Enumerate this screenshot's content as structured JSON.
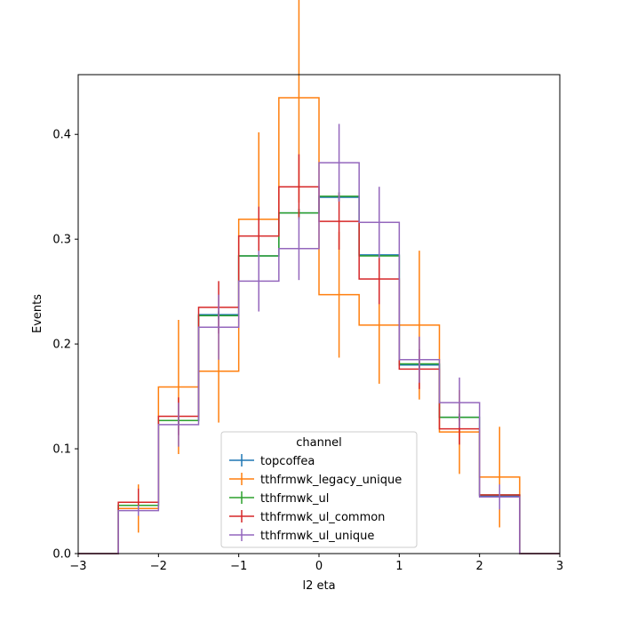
{
  "chart_data": {
    "type": "step",
    "xlabel": "l2 eta",
    "ylabel": "Events",
    "xlim": [
      -3,
      3
    ],
    "ylim": [
      0,
      0.457
    ],
    "xticks": [
      -3,
      -2,
      -1,
      0,
      1,
      2,
      3
    ],
    "yticks": [
      0.0,
      0.1,
      0.2,
      0.3,
      0.4
    ],
    "xtick_labels": [
      "−3",
      "−2",
      "−1",
      "0",
      "1",
      "2",
      "3"
    ],
    "ytick_labels": [
      "0.0",
      "0.1",
      "0.2",
      "0.3",
      "0.4"
    ],
    "bin_edges": [
      -3,
      -2.5,
      -2,
      -1.5,
      -1,
      -0.5,
      0,
      0.5,
      1,
      1.5,
      2,
      2.5,
      3
    ],
    "legend": {
      "title": "channel",
      "placement": "lower center"
    },
    "series": [
      {
        "name": "topcoffea",
        "color": "#1f77b4",
        "values": [
          0,
          0.046,
          0.127,
          0.228,
          0.284,
          0.325,
          0.34,
          0.285,
          0.18,
          0.13,
          0.055,
          0
        ],
        "errors": [
          0,
          0.003,
          0.004,
          0.004,
          0.004,
          0.004,
          0.004,
          0.004,
          0.004,
          0.003,
          0.002,
          0
        ]
      },
      {
        "name": "tthfrmwk_legacy_unique",
        "color": "#ff7f0e",
        "values": [
          0,
          0.043,
          0.159,
          0.174,
          0.319,
          0.435,
          0.247,
          0.218,
          0.218,
          0.116,
          0.073,
          0
        ],
        "errors": [
          0,
          0.023,
          0.064,
          0.049,
          0.083,
          0.1,
          0.06,
          0.056,
          0.071,
          0.04,
          0.048,
          0
        ]
      },
      {
        "name": "tthfrmwk_ul",
        "color": "#2ca02c",
        "values": [
          0,
          0.046,
          0.127,
          0.227,
          0.284,
          0.325,
          0.341,
          0.284,
          0.181,
          0.13,
          0.056,
          0
        ],
        "errors": [
          0,
          0.003,
          0.004,
          0.004,
          0.004,
          0.004,
          0.004,
          0.004,
          0.004,
          0.003,
          0.002,
          0
        ]
      },
      {
        "name": "tthfrmwk_ul_common",
        "color": "#d62728",
        "values": [
          0,
          0.049,
          0.131,
          0.235,
          0.303,
          0.35,
          0.317,
          0.262,
          0.176,
          0.119,
          0.056,
          0
        ],
        "errors": [
          0,
          0.013,
          0.018,
          0.025,
          0.028,
          0.031,
          0.027,
          0.024,
          0.019,
          0.015,
          0.009,
          0
        ]
      },
      {
        "name": "tthfrmwk_ul_unique",
        "color": "#9467bd",
        "values": [
          0,
          0.041,
          0.123,
          0.216,
          0.26,
          0.291,
          0.373,
          0.316,
          0.185,
          0.144,
          0.054,
          0
        ],
        "errors": [
          0,
          0.005,
          0.021,
          0.031,
          0.029,
          0.03,
          0.037,
          0.034,
          0.022,
          0.024,
          0.012,
          0
        ]
      }
    ]
  }
}
